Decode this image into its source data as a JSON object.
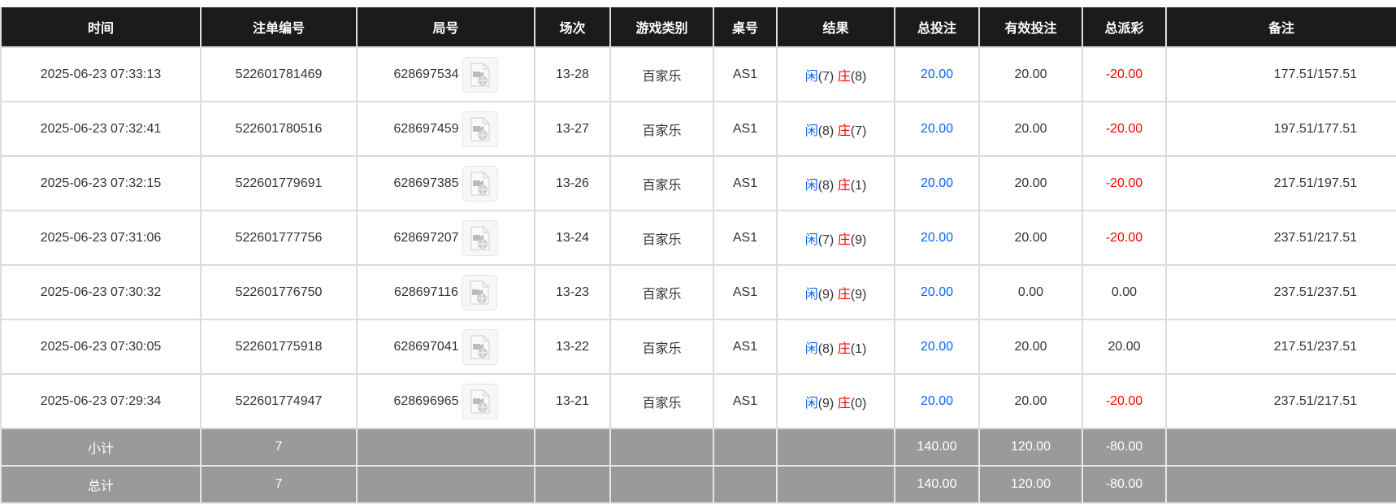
{
  "headers": [
    "时间",
    "注单编号",
    "局号",
    "场次",
    "游戏类别",
    "桌号",
    "结果",
    "总投注",
    "有效投注",
    "总派彩",
    "备注"
  ],
  "rows": [
    {
      "time": "2025-06-23 07:33:13",
      "bet_id": "522601781469",
      "round": "628697534",
      "session": "13-28",
      "game": "百家乐",
      "table": "AS1",
      "player_label": "闲",
      "player": "(7)",
      "banker_label": "庄",
      "banker": "(8)",
      "total_bet": "20.00",
      "valid_bet": "20.00",
      "payout": "-20.00",
      "payout_negative": true,
      "remark": "177.51/157.51"
    },
    {
      "time": "2025-06-23 07:32:41",
      "bet_id": "522601780516",
      "round": "628697459",
      "session": "13-27",
      "game": "百家乐",
      "table": "AS1",
      "player_label": "闲",
      "player": "(8)",
      "banker_label": "庄",
      "banker": "(7)",
      "total_bet": "20.00",
      "valid_bet": "20.00",
      "payout": "-20.00",
      "payout_negative": true,
      "remark": "197.51/177.51"
    },
    {
      "time": "2025-06-23 07:32:15",
      "bet_id": "522601779691",
      "round": "628697385",
      "session": "13-26",
      "game": "百家乐",
      "table": "AS1",
      "player_label": "闲",
      "player": "(8)",
      "banker_label": "庄",
      "banker": "(1)",
      "total_bet": "20.00",
      "valid_bet": "20.00",
      "payout": "-20.00",
      "payout_negative": true,
      "remark": "217.51/197.51"
    },
    {
      "time": "2025-06-23 07:31:06",
      "bet_id": "522601777756",
      "round": "628697207",
      "session": "13-24",
      "game": "百家乐",
      "table": "AS1",
      "player_label": "闲",
      "player": "(7)",
      "banker_label": "庄",
      "banker": "(9)",
      "total_bet": "20.00",
      "valid_bet": "20.00",
      "payout": "-20.00",
      "payout_negative": true,
      "remark": "237.51/217.51"
    },
    {
      "time": "2025-06-23 07:30:32",
      "bet_id": "522601776750",
      "round": "628697116",
      "session": "13-23",
      "game": "百家乐",
      "table": "AS1",
      "player_label": "闲",
      "player": "(9)",
      "banker_label": "庄",
      "banker": "(9)",
      "total_bet": "20.00",
      "valid_bet": "0.00",
      "payout": "0.00",
      "payout_negative": false,
      "remark": "237.51/237.51"
    },
    {
      "time": "2025-06-23 07:30:05",
      "bet_id": "522601775918",
      "round": "628697041",
      "session": "13-22",
      "game": "百家乐",
      "table": "AS1",
      "player_label": "闲",
      "player": "(8)",
      "banker_label": "庄",
      "banker": "(1)",
      "total_bet": "20.00",
      "valid_bet": "20.00",
      "payout": "20.00",
      "payout_negative": false,
      "remark": "217.51/237.51"
    },
    {
      "time": "2025-06-23 07:29:34",
      "bet_id": "522601774947",
      "round": "628696965",
      "session": "13-21",
      "game": "百家乐",
      "table": "AS1",
      "player_label": "闲",
      "player": "(9)",
      "banker_label": "庄",
      "banker": "(0)",
      "total_bet": "20.00",
      "valid_bet": "20.00",
      "payout": "-20.00",
      "payout_negative": true,
      "remark": "237.51/217.51"
    }
  ],
  "subtotal": {
    "label": "小计",
    "count": "7",
    "total_bet": "140.00",
    "valid_bet": "120.00",
    "payout": "-80.00"
  },
  "total": {
    "label": "总计",
    "count": "7",
    "total_bet": "140.00",
    "valid_bet": "120.00",
    "payout": "-80.00"
  },
  "icons": {
    "replay": "video-replay-icon"
  },
  "colors": {
    "header_bg": "#1b1b1b",
    "player": "#0a64ff",
    "banker": "#ff0000",
    "summary_bg": "#9a9a9a"
  }
}
